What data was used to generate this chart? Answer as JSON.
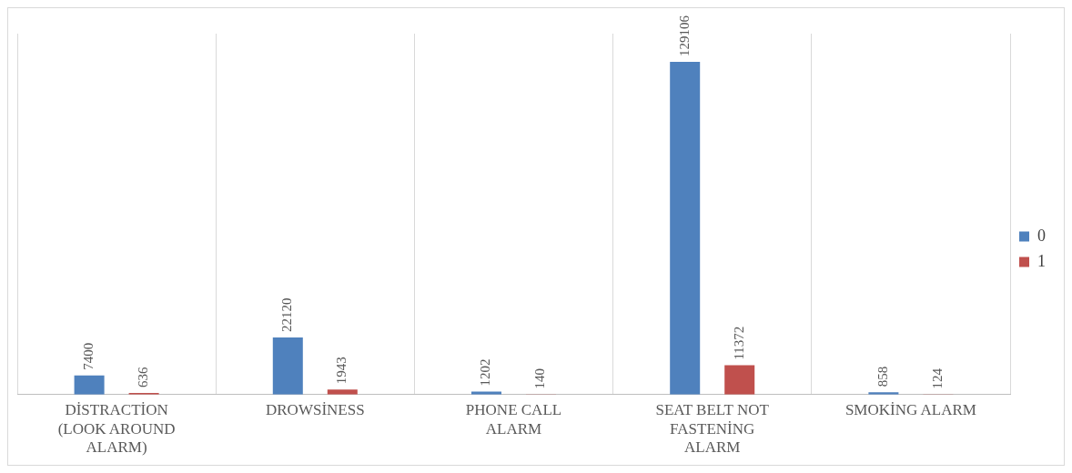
{
  "chart_data": {
    "type": "bar",
    "categories": [
      "DİSTRACTİON (LOOK AROUND ALARM)",
      "DROWSİNESS",
      "PHONE CALL ALARM",
      "SEAT BELT NOT FASTENİNG ALARM",
      "SMOKİNG ALARM"
    ],
    "series": [
      {
        "name": "0",
        "color": "#4f81bd",
        "values": [
          7400,
          22120,
          1202,
          129106,
          858
        ]
      },
      {
        "name": "1",
        "color": "#c0504d",
        "values": [
          636,
          1943,
          140,
          11372,
          124
        ]
      }
    ],
    "data_labels": true,
    "grid": "x",
    "legend": "right"
  }
}
